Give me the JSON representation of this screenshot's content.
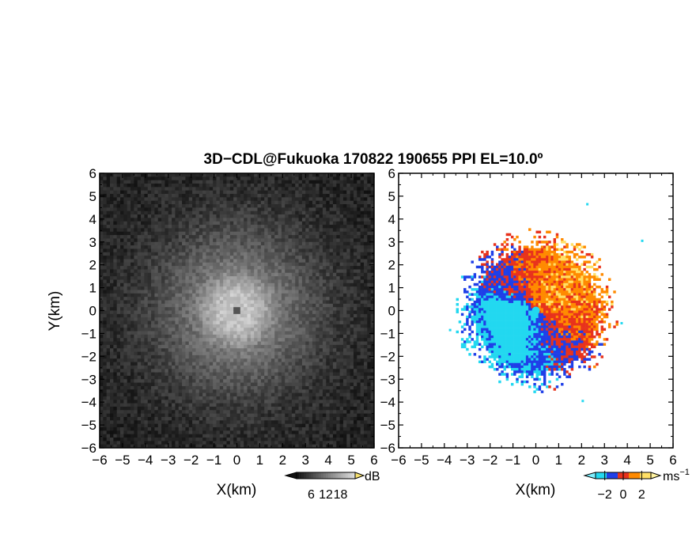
{
  "chart_data": [
    {
      "type": "heatmap",
      "title": "3D−CDL@Fukuoka 170822 190655 PPI EL=10.0º",
      "xlabel": "X(km)",
      "ylabel": "Y(km)",
      "xlim": [
        -6,
        6
      ],
      "ylim": [
        -6,
        6
      ],
      "xticks": [
        "−6",
        "−5",
        "−4",
        "−3",
        "−2",
        "−1",
        "0",
        "1",
        "2",
        "3",
        "4",
        "5",
        "6"
      ],
      "yticks": [
        "6",
        "5",
        "4",
        "3",
        "2",
        "1",
        "0",
        "−1",
        "−2",
        "−3",
        "−4",
        "−5",
        "−6"
      ],
      "colormap": "grayscale",
      "colorbar": {
        "label": "dB",
        "ticks": [
          "6",
          "12",
          "18"
        ],
        "range": [
          0,
          24
        ]
      },
      "features": {
        "bright_core_radius_km": 1.5,
        "halo_radius_km": 3.5,
        "center_dot_radius_km": 0.2
      }
    },
    {
      "type": "heatmap",
      "xlabel": "X(km)",
      "xlim": [
        -6,
        6
      ],
      "ylim": [
        -6,
        6
      ],
      "xticks": [
        "−6",
        "−5",
        "−4",
        "−3",
        "−2",
        "−1",
        "0",
        "1",
        "2",
        "3",
        "4",
        "5",
        "6"
      ],
      "colormap": "diverging cyan-blue / red-yellow",
      "colorbar": {
        "label": "ms",
        "label_sup": "−1",
        "ticks": [
          "−2",
          "0",
          "2"
        ],
        "range": [
          -3,
          3
        ]
      },
      "features": {
        "echo_radius_km": 3.2,
        "negative_side": "west/south",
        "positive_side": "north/east"
      }
    }
  ],
  "colors": {
    "background": "#ffffff",
    "axis": "#000000",
    "cyan": "#22d8f0",
    "blue": "#1f3fe8",
    "red": "#e8321c",
    "orange": "#ff8a00",
    "yellow": "#ffe066"
  }
}
